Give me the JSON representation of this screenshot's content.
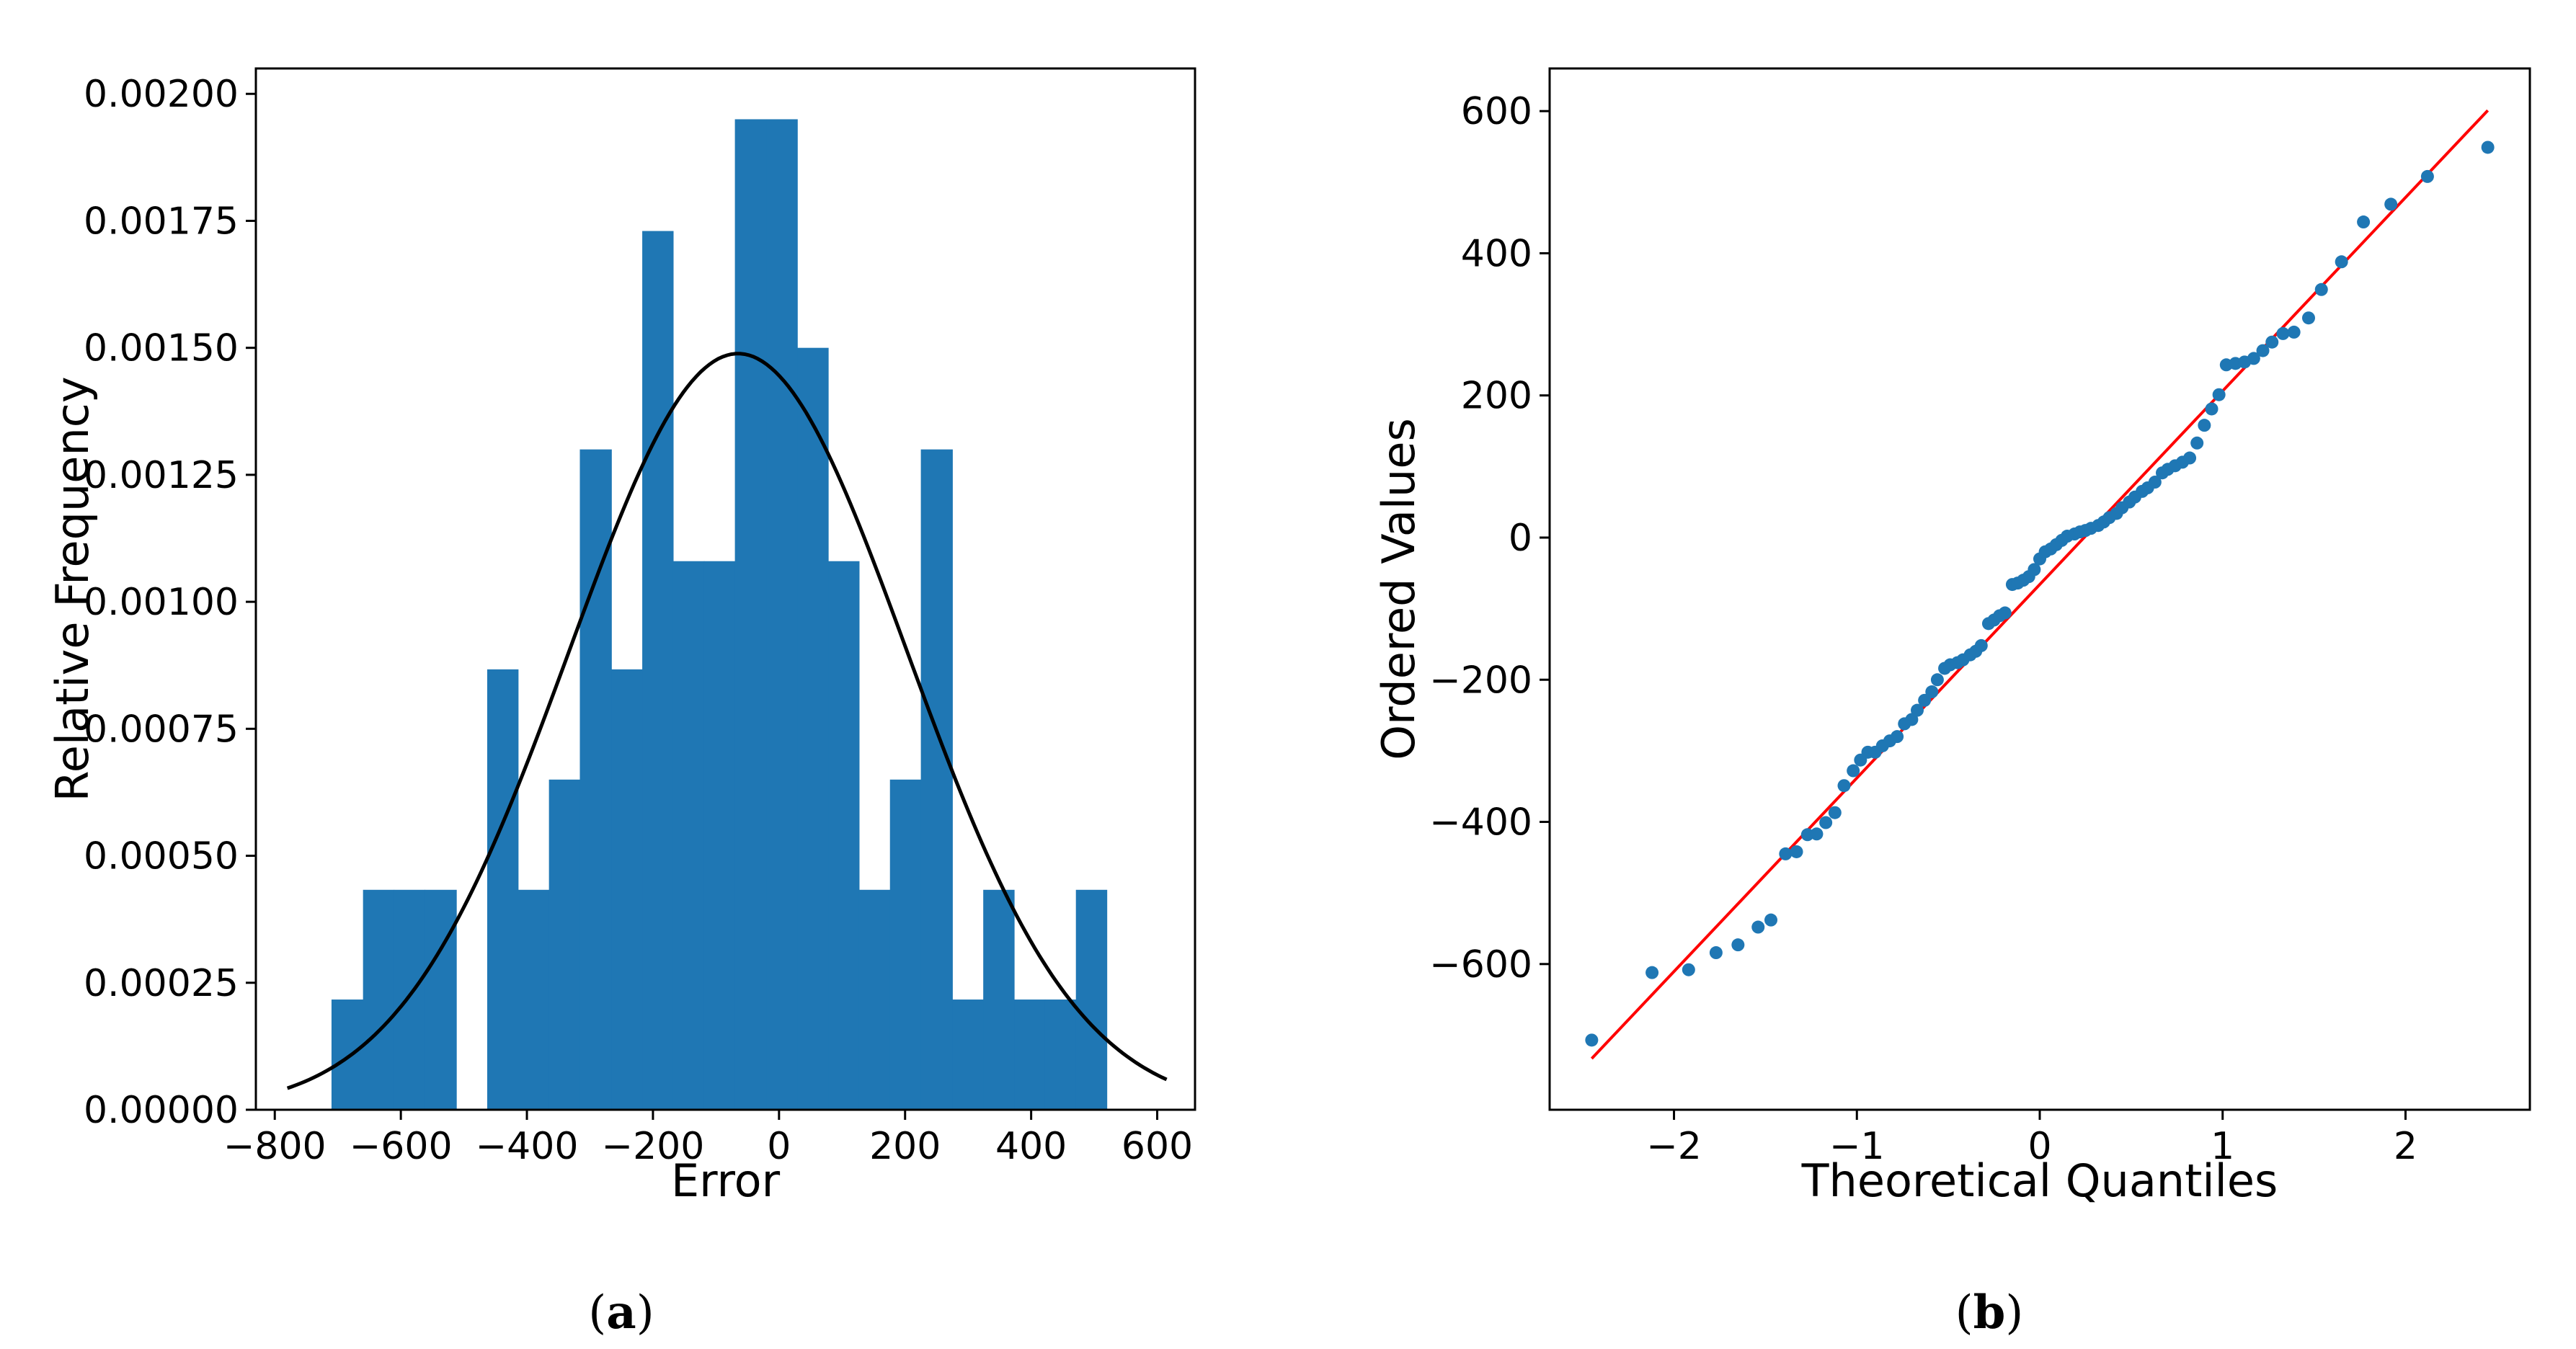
{
  "chart_data": [
    {
      "type": "bar",
      "subplot_label": "a",
      "xlabel": "Error",
      "ylabel": "Relative Frequency",
      "xlim": [
        -830,
        660
      ],
      "ylim": [
        0,
        0.00205
      ],
      "xticks": [
        -800,
        -600,
        -400,
        -200,
        0,
        200,
        400,
        600
      ],
      "xtick_labels": [
        "−800",
        "−600",
        "−400",
        "−200",
        "0",
        "200",
        "400",
        "600"
      ],
      "yticks": [
        0,
        0.00025,
        0.0005,
        0.00075,
        0.001,
        0.00125,
        0.0015,
        0.00175,
        0.002
      ],
      "ytick_labels": [
        "0.00000",
        "0.00025",
        "0.00050",
        "0.00075",
        "0.00100",
        "0.00125",
        "0.00150",
        "0.00175",
        "0.00200"
      ],
      "bin_edges": [
        -710,
        -660,
        -611,
        -562,
        -512,
        -463,
        -414,
        -365,
        -316,
        -266,
        -217,
        -168,
        -119,
        -70,
        -20,
        29,
        78,
        127,
        176,
        225,
        275,
        324,
        373,
        422,
        471,
        520,
        570
      ],
      "values": [
        0.000217,
        0.000433,
        0.000433,
        0.000433,
        0,
        0.000867,
        0.000433,
        0.00065,
        0.0013,
        0.000867,
        0.00173,
        0.00108,
        0.00108,
        0.00195,
        0.00195,
        0.0015,
        0.00108,
        0.000433,
        0.00065,
        0.0013,
        0.000217,
        0.000433,
        0.000217,
        0.000217,
        0.000433,
        0
      ],
      "fit_curve": {
        "type": "normal-pdf",
        "mean": -65,
        "std": 268,
        "x_range": [
          -780,
          615
        ],
        "color": "#000000"
      },
      "bar_color": "#1f77b4",
      "grid": false
    },
    {
      "type": "scatter",
      "subplot_label": "b",
      "xlabel": "Theoretical Quantiles",
      "ylabel": "Ordered Values",
      "xlim": [
        -2.68,
        2.68
      ],
      "ylim": [
        -805,
        660
      ],
      "xticks": [
        -2,
        -1,
        0,
        1,
        2
      ],
      "xtick_labels": [
        "−2",
        "−1",
        "0",
        "1",
        "2"
      ],
      "yticks": [
        -600,
        -400,
        -200,
        0,
        200,
        400,
        600
      ],
      "ytick_labels": [
        "−600",
        "−400",
        "−200",
        "0",
        "200",
        "400",
        "600"
      ],
      "points": [
        [
          -2.45,
          -707
        ],
        [
          -2.12,
          -612
        ],
        [
          -1.92,
          -608
        ],
        [
          -1.77,
          -584
        ],
        [
          -1.65,
          -573
        ],
        [
          -1.54,
          -548
        ],
        [
          -1.47,
          -538
        ],
        [
          -1.39,
          -445
        ],
        [
          -1.33,
          -442
        ],
        [
          -1.27,
          -418
        ],
        [
          -1.22,
          -417
        ],
        [
          -1.17,
          -401
        ],
        [
          -1.12,
          -387
        ],
        [
          -1.07,
          -349
        ],
        [
          -1.02,
          -328
        ],
        [
          -0.98,
          -313
        ],
        [
          -0.94,
          -302
        ],
        [
          -0.9,
          -302
        ],
        [
          -0.86,
          -293
        ],
        [
          -0.82,
          -286
        ],
        [
          -0.78,
          -280
        ],
        [
          -0.74,
          -262
        ],
        [
          -0.7,
          -256
        ],
        [
          -0.67,
          -243
        ],
        [
          -0.63,
          -229
        ],
        [
          -0.59,
          -217
        ],
        [
          -0.56,
          -200
        ],
        [
          -0.52,
          -184
        ],
        [
          -0.49,
          -179
        ],
        [
          -0.45,
          -176
        ],
        [
          -0.42,
          -172
        ],
        [
          -0.38,
          -165
        ],
        [
          -0.35,
          -160
        ],
        [
          -0.32,
          -152
        ],
        [
          -0.28,
          -121
        ],
        [
          -0.25,
          -116
        ],
        [
          -0.22,
          -110
        ],
        [
          -0.19,
          -106
        ],
        [
          -0.15,
          -66
        ],
        [
          -0.12,
          -64
        ],
        [
          -0.09,
          -60
        ],
        [
          -0.06,
          -55
        ],
        [
          -0.03,
          -45
        ],
        [
          0.0,
          -30
        ],
        [
          0.03,
          -20
        ],
        [
          0.06,
          -16
        ],
        [
          0.09,
          -10
        ],
        [
          0.12,
          -4
        ],
        [
          0.15,
          2
        ],
        [
          0.19,
          5
        ],
        [
          0.22,
          8
        ],
        [
          0.25,
          10
        ],
        [
          0.28,
          13
        ],
        [
          0.32,
          17
        ],
        [
          0.35,
          22
        ],
        [
          0.38,
          28
        ],
        [
          0.42,
          34
        ],
        [
          0.45,
          42
        ],
        [
          0.49,
          50
        ],
        [
          0.52,
          57
        ],
        [
          0.56,
          65
        ],
        [
          0.59,
          70
        ],
        [
          0.63,
          78
        ],
        [
          0.67,
          91
        ],
        [
          0.7,
          96
        ],
        [
          0.74,
          101
        ],
        [
          0.78,
          106
        ],
        [
          0.82,
          112
        ],
        [
          0.86,
          133
        ],
        [
          0.9,
          158
        ],
        [
          0.94,
          181
        ],
        [
          0.98,
          201
        ],
        [
          1.02,
          243
        ],
        [
          1.07,
          245
        ],
        [
          1.12,
          247
        ],
        [
          1.17,
          252
        ],
        [
          1.22,
          263
        ],
        [
          1.27,
          275
        ],
        [
          1.33,
          287
        ],
        [
          1.39,
          289
        ],
        [
          1.47,
          309
        ],
        [
          1.54,
          349
        ],
        [
          1.65,
          388
        ],
        [
          1.77,
          444
        ],
        [
          1.92,
          469
        ],
        [
          2.12,
          508
        ],
        [
          2.45,
          549
        ]
      ],
      "line": {
        "x": [
          -2.45,
          2.45
        ],
        "y": [
          -733,
          601
        ],
        "color": "#ff0000"
      },
      "point_color": "#1f77b4",
      "grid": false
    }
  ],
  "captions": {
    "a": {
      "open": "(",
      "letter": "a",
      "close": ")"
    },
    "b": {
      "open": "(",
      "letter": "b",
      "close": ")"
    }
  }
}
